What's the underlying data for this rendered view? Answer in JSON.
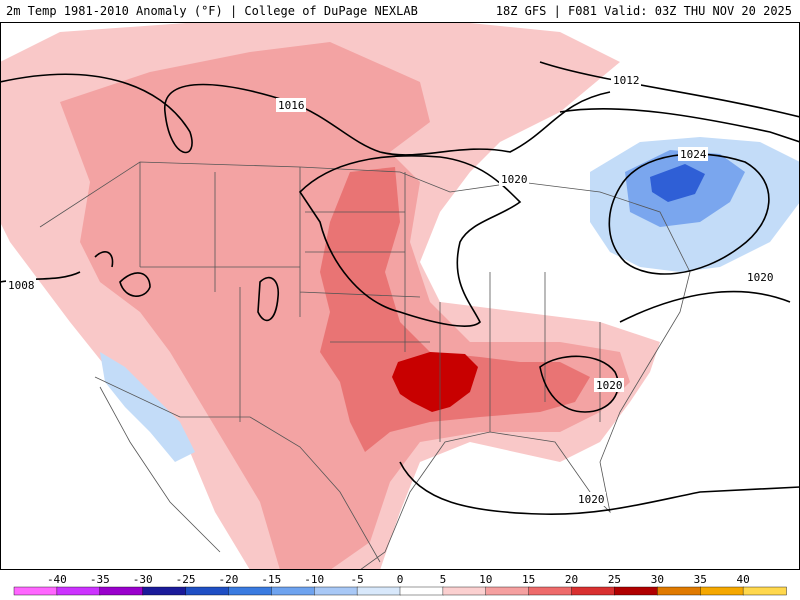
{
  "header": {
    "left": "2m Temp 1981-2010 Anomaly (°F) | College of DuPage NEXLAB",
    "right": "18Z GFS | F081 Valid: 03Z THU NOV 20 2025"
  },
  "colors": {
    "warm_light": "#f9c8c8",
    "warm_mid": "#f3a3a3",
    "warm_strong": "#e97474",
    "warm_peak": "#c80000",
    "cool_light": "#c3dcf8",
    "cool_mid": "#7aa6ee",
    "cool_strong": "#2f5fd6"
  },
  "isobars": [
    {
      "label": "1016"
    },
    {
      "label": "1012"
    },
    {
      "label": "1020"
    },
    {
      "label": "1024"
    },
    {
      "label": "1020"
    },
    {
      "label": "1020"
    },
    {
      "label": "1020"
    },
    {
      "label": "1008"
    }
  ],
  "colorbar": {
    "ticks": [
      "-40",
      "-35",
      "-30",
      "-25",
      "-20",
      "-15",
      "-10",
      "-5",
      "0",
      "5",
      "10",
      "15",
      "20",
      "25",
      "30",
      "35",
      "40"
    ],
    "colors": [
      "#ff66ff",
      "#cc33ff",
      "#9900cc",
      "#1a1a99",
      "#1f4fc4",
      "#3a7be0",
      "#6ea3ef",
      "#a8c8f6",
      "#d8e8fb",
      "#ffffff",
      "#fbd0d0",
      "#f5a0a0",
      "#ee6b6b",
      "#d93030",
      "#b00000",
      "#e07a00",
      "#f5a800",
      "#ffd84d"
    ]
  }
}
